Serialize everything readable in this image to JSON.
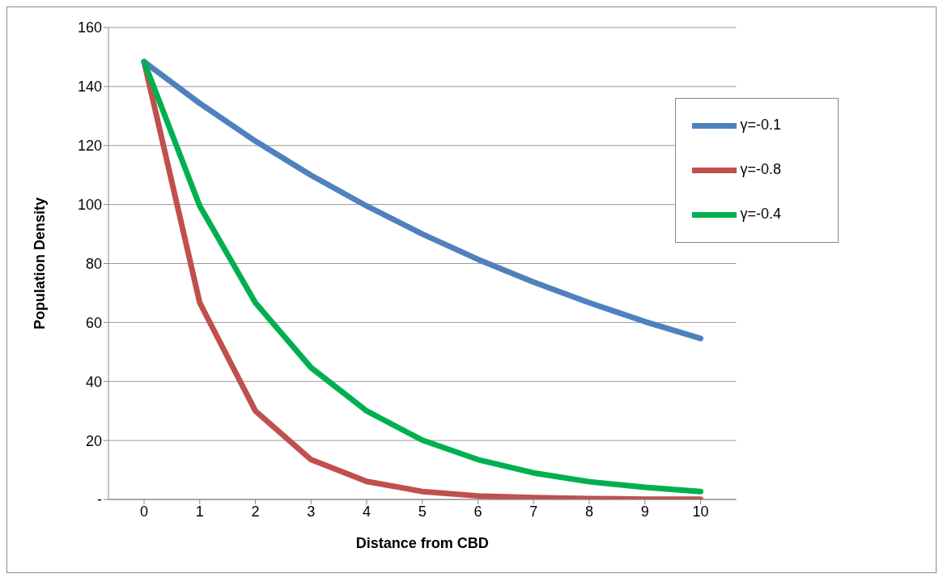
{
  "chart_data": {
    "type": "line",
    "xlabel": "Distance from CBD",
    "ylabel": "Population Density",
    "categories": [
      "0",
      "1",
      "2",
      "3",
      "4",
      "5",
      "6",
      "7",
      "8",
      "9",
      "10"
    ],
    "series": [
      {
        "name": "γ=-0.1",
        "color": "#4f81bd",
        "values": [
          148.4,
          134.3,
          121.5,
          109.9,
          99.5,
          90.0,
          81.4,
          73.7,
          66.7,
          60.3,
          54.6
        ]
      },
      {
        "name": "γ=-0.8",
        "color": "#c0504d",
        "values": [
          148.4,
          66.7,
          30.0,
          13.5,
          6.1,
          2.7,
          1.2,
          0.6,
          0.3,
          0.1,
          0.1
        ]
      },
      {
        "name": "γ=-0.4",
        "color": "#00b050",
        "values": [
          148.4,
          99.5,
          66.7,
          44.7,
          30.0,
          20.1,
          13.5,
          9.0,
          6.0,
          4.1,
          2.7
        ]
      }
    ],
    "ylim": [
      0,
      160
    ],
    "yticks": [
      {
        "value": 0,
        "label": "-"
      },
      20,
      40,
      60,
      80,
      100,
      120,
      140,
      160
    ],
    "grid": "y",
    "legend": "top right",
    "marker": "none",
    "line_style": "solid"
  }
}
